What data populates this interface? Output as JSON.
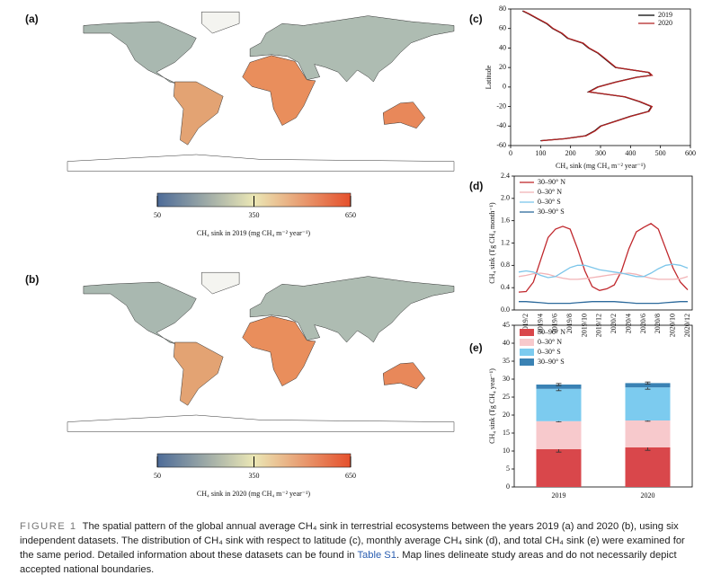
{
  "maps": [
    {
      "label": "(a)",
      "colorbar": {
        "lim": [
          50,
          650
        ],
        "ticks": [
          50,
          350,
          650
        ]
      },
      "caption": "CH₄ sink in 2019 (mg CH₄ m⁻² year⁻¹)"
    },
    {
      "label": "(b)",
      "colorbar": {
        "lim": [
          50,
          650
        ],
        "ticks": [
          50,
          350,
          650
        ]
      },
      "caption": "CH₄ sink in 2020 (mg CH₄ m⁻² year⁻¹)"
    }
  ],
  "chart_data": [
    {
      "type": "profile",
      "label": "(c)",
      "xlabel": "CH₄ sink (mg CH₄ m⁻² year⁻¹)",
      "ylabel": "Latitude",
      "latitude": [
        78,
        75,
        70,
        65,
        60,
        55,
        50,
        45,
        40,
        35,
        30,
        25,
        20,
        15,
        12,
        10,
        5,
        0,
        -5,
        -10,
        -15,
        -20,
        -25,
        -30,
        -35,
        -40,
        -45,
        -50,
        -53,
        -55
      ],
      "series": [
        {
          "name": "2019",
          "color": "#000000",
          "values": [
            40,
            60,
            90,
            120,
            140,
            170,
            190,
            240,
            260,
            290,
            310,
            330,
            350,
            460,
            470,
            420,
            350,
            290,
            260,
            380,
            430,
            470,
            460,
            400,
            350,
            300,
            280,
            250,
            180,
            100
          ]
        },
        {
          "name": "2020",
          "color": "#b22222",
          "values": [
            42,
            62,
            92,
            122,
            142,
            172,
            192,
            242,
            262,
            292,
            312,
            332,
            352,
            462,
            472,
            422,
            352,
            292,
            262,
            382,
            432,
            472,
            462,
            402,
            352,
            302,
            282,
            252,
            182,
            102
          ]
        }
      ],
      "xlim": [
        0,
        600
      ],
      "xticks": [
        0,
        100,
        200,
        300,
        400,
        500,
        600
      ],
      "ylim": [
        -60,
        80
      ],
      "yticks": [
        -60,
        -40,
        -20,
        0,
        20,
        40,
        60,
        80
      ]
    },
    {
      "type": "line",
      "label": "(d)",
      "ylabel": "CH₄ sink (Tg CH₄ month⁻¹)",
      "categories": [
        null,
        "2019/2",
        null,
        "2019/4",
        null,
        "2019/6",
        null,
        "2019/8",
        null,
        "2019/10",
        null,
        "2019/12",
        null,
        "2020/2",
        null,
        "2020/4",
        null,
        "2020/6",
        null,
        "2020/8",
        null,
        "2020/10",
        null,
        "2020/12"
      ],
      "series": [
        {
          "name": "30–90° N",
          "color": "#c0282d",
          "values": [
            0.32,
            0.33,
            0.5,
            0.9,
            1.3,
            1.45,
            1.5,
            1.45,
            1.1,
            0.7,
            0.42,
            0.35,
            0.38,
            0.45,
            0.7,
            1.1,
            1.4,
            1.48,
            1.55,
            1.45,
            1.1,
            0.75,
            0.5,
            0.36
          ]
        },
        {
          "name": "0–30° N",
          "color": "#f2b3b6",
          "values": [
            0.6,
            0.62,
            0.65,
            0.66,
            0.64,
            0.6,
            0.57,
            0.55,
            0.55,
            0.56,
            0.58,
            0.6,
            0.62,
            0.64,
            0.65,
            0.66,
            0.64,
            0.6,
            0.57,
            0.55,
            0.55,
            0.55,
            0.56,
            0.6
          ]
        },
        {
          "name": "0–30° S",
          "color": "#7cc6ea",
          "values": [
            0.68,
            0.7,
            0.68,
            0.62,
            0.58,
            0.6,
            0.68,
            0.76,
            0.8,
            0.8,
            0.76,
            0.72,
            0.7,
            0.68,
            0.66,
            0.63,
            0.6,
            0.6,
            0.66,
            0.74,
            0.8,
            0.82,
            0.8,
            0.75
          ]
        },
        {
          "name": "30–90° S",
          "color": "#2d6a9c",
          "values": [
            0.15,
            0.15,
            0.14,
            0.13,
            0.12,
            0.12,
            0.12,
            0.12,
            0.13,
            0.14,
            0.15,
            0.15,
            0.15,
            0.15,
            0.14,
            0.13,
            0.12,
            0.12,
            0.12,
            0.12,
            0.13,
            0.14,
            0.15,
            0.15
          ]
        }
      ],
      "ylim": [
        0,
        2.4
      ],
      "yticks": [
        {
          "value": 0,
          "label": "0.0"
        },
        0.4,
        0.8,
        1.2,
        1.6,
        {
          "value": 2,
          "label": "2.0"
        },
        2.4
      ]
    },
    {
      "type": "stacked_bar",
      "label": "(e)",
      "ylabel": "CH₄ sink (Tg CH₄ year⁻¹)",
      "categories": [
        "2019",
        "2020"
      ],
      "series": [
        {
          "name": "30–90° N",
          "color": "#d9474b",
          "values": [
            10.5,
            11
          ],
          "errors": [
            0.8,
            0.8
          ]
        },
        {
          "name": "0–30° N",
          "color": "#f7c9cc",
          "values": [
            7.8,
            7.5
          ],
          "errors": [
            0.2,
            0.2
          ]
        },
        {
          "name": "0–30° S",
          "color": "#7ccbef",
          "values": [
            9,
            9.2
          ],
          "errors": [
            0.5,
            0.5
          ]
        },
        {
          "name": "30–90° S",
          "color": "#3a82b4",
          "values": [
            1.2,
            1.2
          ],
          "errors": [
            0.3,
            0.3
          ]
        }
      ],
      "ylim": [
        0,
        45
      ],
      "yticks": [
        0,
        5,
        10,
        15,
        20,
        25,
        30,
        35,
        40,
        45
      ]
    }
  ],
  "caption": {
    "label": "FIGURE 1",
    "text": "The spatial pattern of the global annual average CH₄ sink in terrestrial ecosystems between the years 2019 (a) and 2020 (b), using six independent datasets. The distribution of CH₄ sink with respect to latitude (c), monthly average CH₄ sink (d), and total CH₄ sink (e) were examined for the same period. Detailed information about these datasets can be found in ",
    "link": "Table S1",
    "text_end": ". Map lines delineate study areas and do not necessarily depict accepted national boundaries."
  }
}
